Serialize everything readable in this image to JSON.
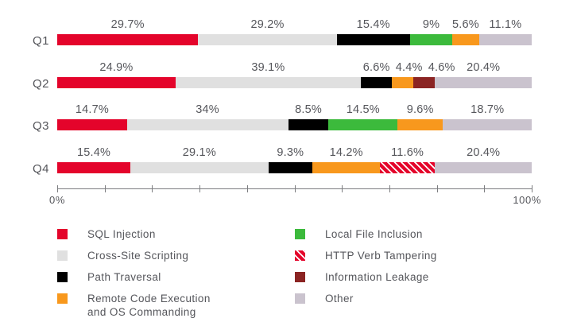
{
  "colors": {
    "text": "#55565b",
    "axis": "#7c7d80",
    "background": "#ffffff"
  },
  "chart_data": {
    "type": "bar",
    "orientation": "horizontal",
    "stacked": true,
    "unit": "%",
    "xlim": [
      0,
      100
    ],
    "grid": false,
    "axis": {
      "start_label": "0%",
      "end_label": "100%",
      "tick_interval": 10,
      "tick_count": 11
    },
    "series_styles": {
      "sql_injection": {
        "label": "SQL Injection",
        "color": "#e4042b",
        "pattern": "solid"
      },
      "cross_site_scripting": {
        "label": "Cross-Site Scripting",
        "color": "#e0e0e0",
        "pattern": "solid"
      },
      "path_traversal": {
        "label": "Path Traversal",
        "color": "#000000",
        "pattern": "solid"
      },
      "remote_code_execution": {
        "label": "Remote Code Execution and OS Commanding",
        "color": "#f8981d",
        "pattern": "solid"
      },
      "local_file_inclusion": {
        "label": "Local File Inclusion",
        "color": "#3cba3c",
        "pattern": "solid"
      },
      "http_verb_tampering": {
        "label": "HTTP Verb Tampering",
        "color": "#e4042b",
        "pattern": "diagonal-stripes",
        "stripe_color": "#ffffff"
      },
      "information_leakage": {
        "label": "Information Leakage",
        "color": "#8b2423",
        "pattern": "solid"
      },
      "other": {
        "label": "Other",
        "color": "#cac3ce",
        "pattern": "solid"
      }
    },
    "rows": [
      {
        "category": "Q1",
        "segments": [
          {
            "series": "sql_injection",
            "value": 29.7,
            "label": "29.7%"
          },
          {
            "series": "cross_site_scripting",
            "value": 29.2,
            "label": "29.2%"
          },
          {
            "series": "path_traversal",
            "value": 15.4,
            "label": "15.4%"
          },
          {
            "series": "local_file_inclusion",
            "value": 9,
            "label": "9%"
          },
          {
            "series": "remote_code_execution",
            "value": 5.6,
            "label": "5.6%"
          },
          {
            "series": "other",
            "value": 11.1,
            "label": "11.1%"
          }
        ]
      },
      {
        "category": "Q2",
        "segments": [
          {
            "series": "sql_injection",
            "value": 24.9,
            "label": "24.9%"
          },
          {
            "series": "cross_site_scripting",
            "value": 39.1,
            "label": "39.1%"
          },
          {
            "series": "path_traversal",
            "value": 6.6,
            "label": "6.6%"
          },
          {
            "series": "remote_code_execution",
            "value": 4.4,
            "label": "4.4%"
          },
          {
            "series": "information_leakage",
            "value": 4.6,
            "label": "4.6%"
          },
          {
            "series": "other",
            "value": 20.4,
            "label": "20.4%"
          }
        ]
      },
      {
        "category": "Q3",
        "segments": [
          {
            "series": "sql_injection",
            "value": 14.7,
            "label": "14.7%"
          },
          {
            "series": "cross_site_scripting",
            "value": 34,
            "label": "34%"
          },
          {
            "series": "path_traversal",
            "value": 8.5,
            "label": "8.5%"
          },
          {
            "series": "local_file_inclusion",
            "value": 14.5,
            "label": "14.5%"
          },
          {
            "series": "remote_code_execution",
            "value": 9.6,
            "label": "9.6%"
          },
          {
            "series": "other",
            "value": 18.7,
            "label": "18.7%"
          }
        ]
      },
      {
        "category": "Q4",
        "segments": [
          {
            "series": "sql_injection",
            "value": 15.4,
            "label": "15.4%"
          },
          {
            "series": "cross_site_scripting",
            "value": 29.1,
            "label": "29.1%"
          },
          {
            "series": "path_traversal",
            "value": 9.3,
            "label": "9.3%"
          },
          {
            "series": "remote_code_execution",
            "value": 14.2,
            "label": "14.2%"
          },
          {
            "series": "http_verb_tampering",
            "value": 11.6,
            "label": "11.6%"
          },
          {
            "series": "other",
            "value": 20.4,
            "label": "20.4%"
          }
        ]
      }
    ]
  },
  "legend": {
    "columns": [
      {
        "items": [
          {
            "series": "sql_injection",
            "lines": [
              "SQL Injection"
            ]
          },
          {
            "series": "cross_site_scripting",
            "lines": [
              "Cross-Site Scripting"
            ]
          },
          {
            "series": "path_traversal",
            "lines": [
              "Path Traversal"
            ]
          },
          {
            "series": "remote_code_execution",
            "lines": [
              "Remote Code Execution",
              "and OS Commanding"
            ]
          }
        ]
      },
      {
        "items": [
          {
            "series": "local_file_inclusion",
            "lines": [
              "Local File Inclusion"
            ]
          },
          {
            "series": "http_verb_tampering",
            "lines": [
              "HTTP Verb Tampering"
            ]
          },
          {
            "series": "information_leakage",
            "lines": [
              "Information Leakage"
            ]
          },
          {
            "series": "other",
            "lines": [
              "Other"
            ]
          }
        ]
      }
    ]
  }
}
